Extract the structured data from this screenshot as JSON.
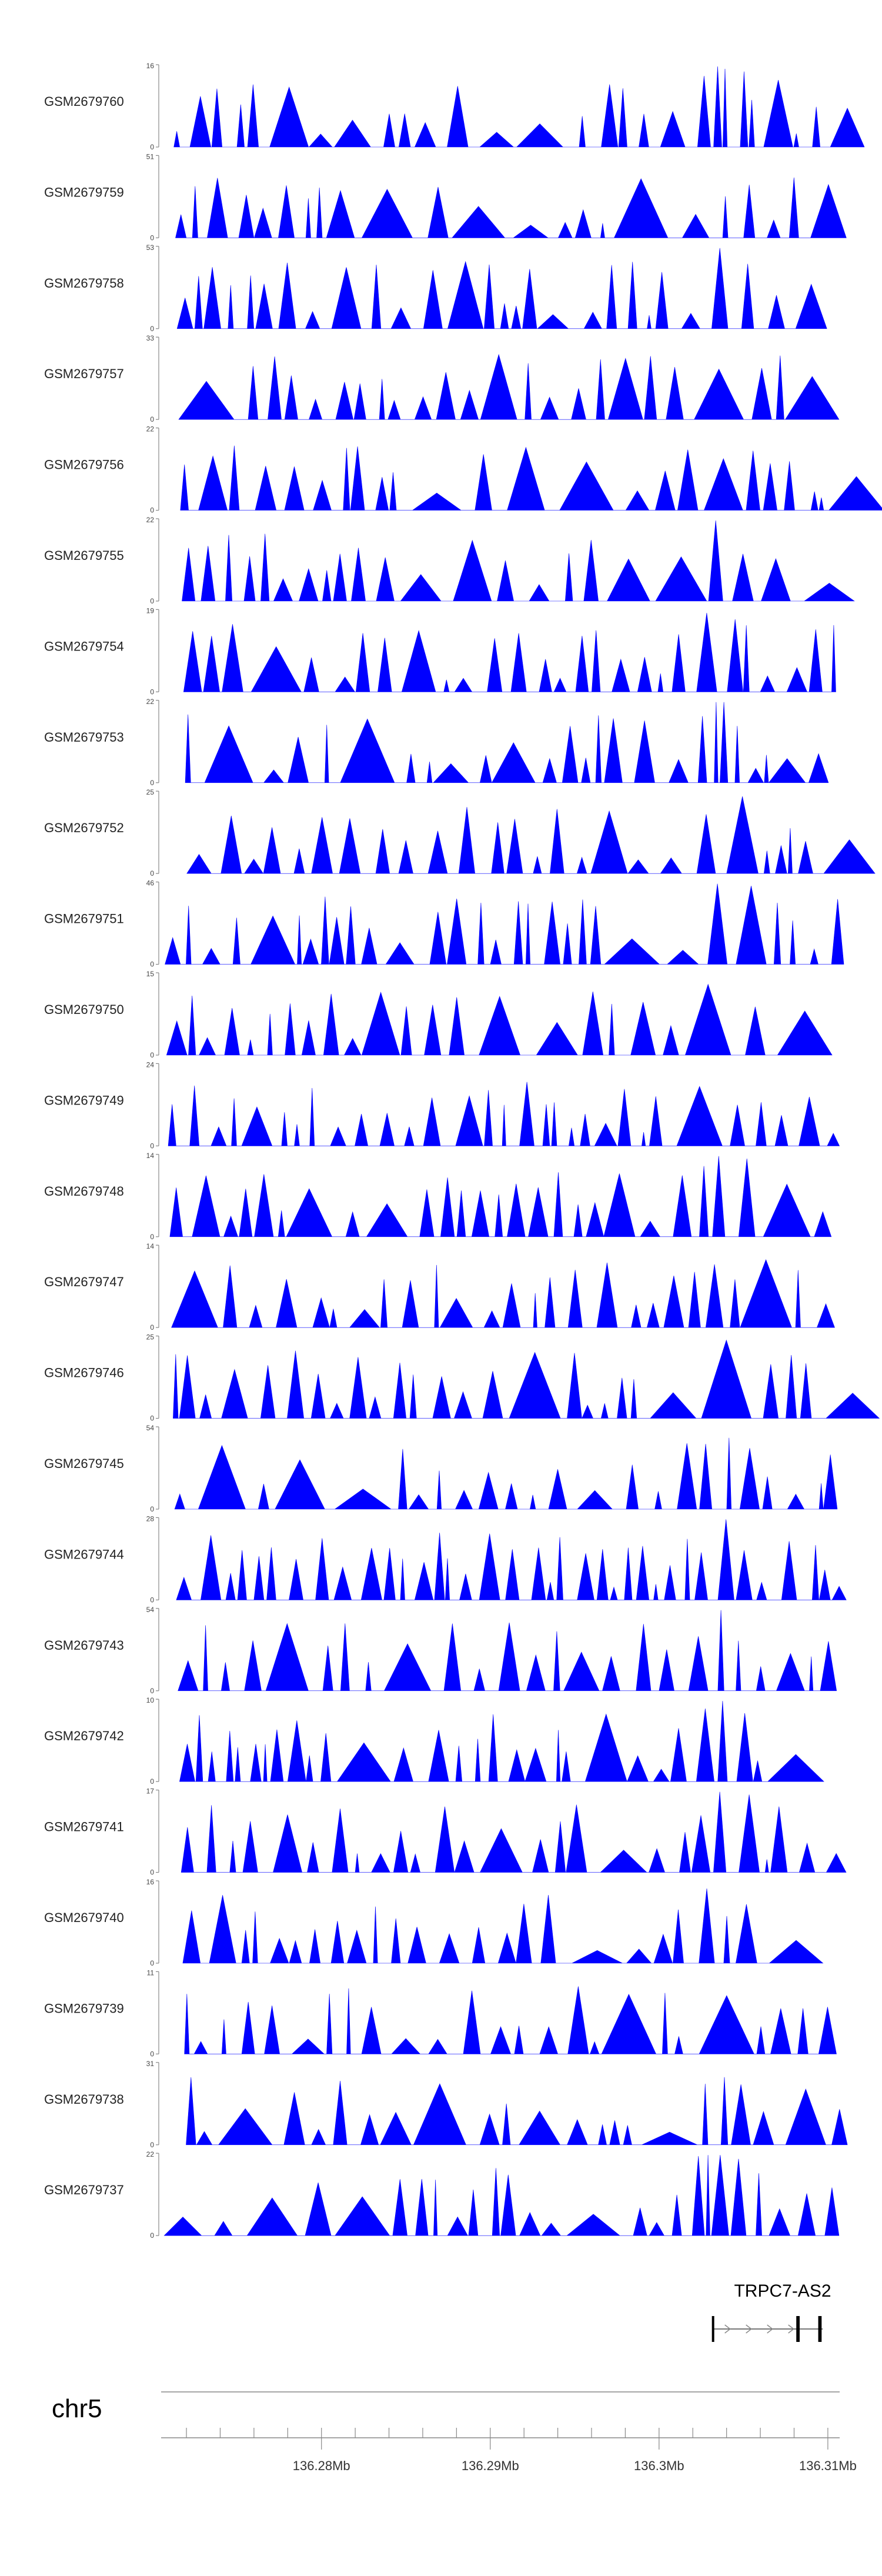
{
  "chart_data": {
    "type": "area",
    "genome": {
      "chromosome": "chr5",
      "xlim": [
        136.2705,
        136.3107
      ],
      "ticks": [
        {
          "value": 136.28,
          "label": "136.28Mb"
        },
        {
          "value": 136.29,
          "label": "136.29Mb"
        },
        {
          "value": 136.3,
          "label": "136.3Mb"
        },
        {
          "value": 136.31,
          "label": "136.31Mb"
        }
      ]
    },
    "gene": {
      "name": "TRPC7-AS2",
      "start": 136.3032,
      "end": 136.3097,
      "exons": [
        [
          136.3032,
          136.3033
        ],
        [
          136.3082,
          136.3084
        ],
        [
          136.3095,
          136.3097
        ]
      ]
    },
    "tracks": [
      {
        "name": "GSM2679760",
        "ymax": "16",
        "ymin": "0"
      },
      {
        "name": "GSM2679759",
        "ymax": "51",
        "ymin": "0"
      },
      {
        "name": "GSM2679758",
        "ymax": "53",
        "ymin": "0"
      },
      {
        "name": "GSM2679757",
        "ymax": "33",
        "ymin": "0"
      },
      {
        "name": "GSM2679756",
        "ymax": "22",
        "ymin": "0"
      },
      {
        "name": "GSM2679755",
        "ymax": "22",
        "ymin": "0"
      },
      {
        "name": "GSM2679754",
        "ymax": "19",
        "ymin": "0"
      },
      {
        "name": "GSM2679753",
        "ymax": "22",
        "ymin": "0"
      },
      {
        "name": "GSM2679752",
        "ymax": "25",
        "ymin": "0"
      },
      {
        "name": "GSM2679751",
        "ymax": "46",
        "ymin": "0"
      },
      {
        "name": "GSM2679750",
        "ymax": "15",
        "ymin": "0"
      },
      {
        "name": "GSM2679749",
        "ymax": "24",
        "ymin": "0"
      },
      {
        "name": "GSM2679748",
        "ymax": "14",
        "ymin": "0"
      },
      {
        "name": "GSM2679747",
        "ymax": "14",
        "ymin": "0"
      },
      {
        "name": "GSM2679746",
        "ymax": "25",
        "ymin": "0"
      },
      {
        "name": "GSM2679745",
        "ymax": "54",
        "ymin": "0"
      },
      {
        "name": "GSM2679744",
        "ymax": "28",
        "ymin": "0"
      },
      {
        "name": "GSM2679743",
        "ymax": "54",
        "ymin": "0"
      },
      {
        "name": "GSM2679742",
        "ymax": "10",
        "ymin": "0"
      },
      {
        "name": "GSM2679741",
        "ymax": "17",
        "ymin": "0"
      },
      {
        "name": "GSM2679740",
        "ymax": "16",
        "ymin": "0"
      },
      {
        "name": "GSM2679739",
        "ymax": "11",
        "ymin": "0"
      },
      {
        "name": "GSM2679738",
        "ymax": "31",
        "ymin": "0"
      },
      {
        "name": "GSM2679737",
        "ymax": "22",
        "ymin": "0"
      }
    ],
    "fill_color": "#0000ff",
    "axis_color": "#888888",
    "peak_center": 136.3032
  }
}
